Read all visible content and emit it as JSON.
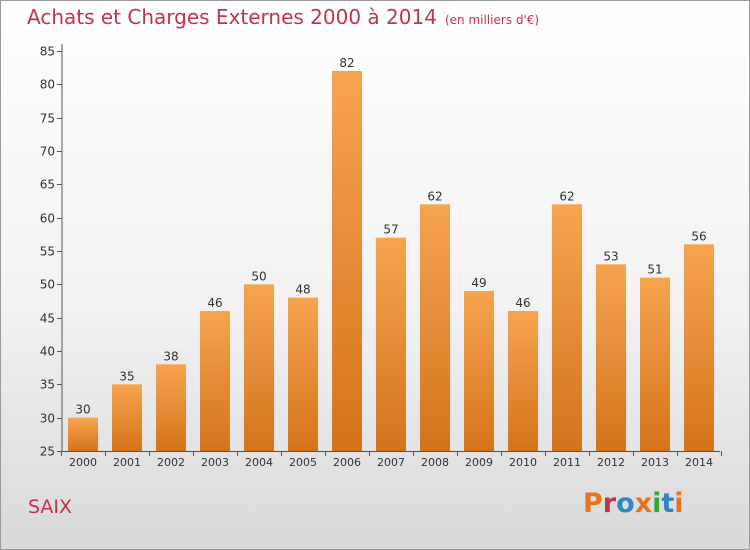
{
  "header": {
    "title": "Achats et Charges Externes 2000 à 2014",
    "subtitle": "(en milliers d'€)"
  },
  "footer": {
    "commune": "SAIX",
    "logo": "Proxiti"
  },
  "colors": {
    "title": "#c2334d",
    "bar_top": "#f7a44e",
    "bar_bottom": "#d4731d",
    "logo_letters": [
      "#e8731b",
      "#c2334d",
      "#2e86c7",
      "#e8731b",
      "#3aa535",
      "#2e86c7",
      "#e8731b"
    ]
  },
  "chart_data": {
    "type": "bar",
    "categories": [
      "2000",
      "2001",
      "2002",
      "2003",
      "2004",
      "2005",
      "2006",
      "2007",
      "2008",
      "2009",
      "2010",
      "2011",
      "2012",
      "2013",
      "2014"
    ],
    "values": [
      30,
      35,
      38,
      46,
      50,
      48,
      82,
      57,
      62,
      49,
      46,
      62,
      53,
      51,
      56
    ],
    "ylim": [
      25,
      85
    ],
    "yticks": [
      25,
      30,
      35,
      40,
      45,
      50,
      55,
      60,
      65,
      70,
      75,
      80,
      85
    ],
    "grid": false,
    "legend": "none"
  }
}
